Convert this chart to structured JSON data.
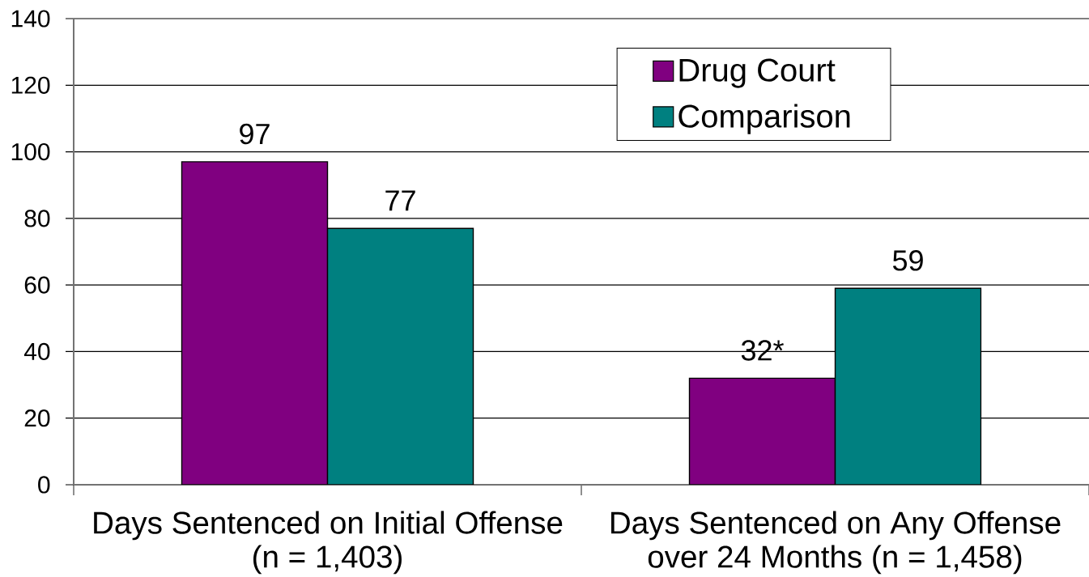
{
  "chart_data": {
    "type": "bar",
    "categories": [
      "Days Sentenced on Initial Offense (n = 1,403)",
      "Days Sentenced on Any Offense over 24 Months (n = 1,458)"
    ],
    "series": [
      {
        "name": "Drug Court",
        "color": "#800080",
        "values": [
          97,
          32
        ],
        "value_labels": [
          "97",
          "32*"
        ]
      },
      {
        "name": "Comparison",
        "color": "#008080",
        "values": [
          77,
          59
        ],
        "value_labels": [
          "77",
          "59"
        ]
      }
    ],
    "ylim": [
      0,
      140
    ],
    "yticks": [
      0,
      20,
      40,
      60,
      80,
      100,
      120,
      140
    ],
    "grid": "y",
    "legend": "top right"
  }
}
